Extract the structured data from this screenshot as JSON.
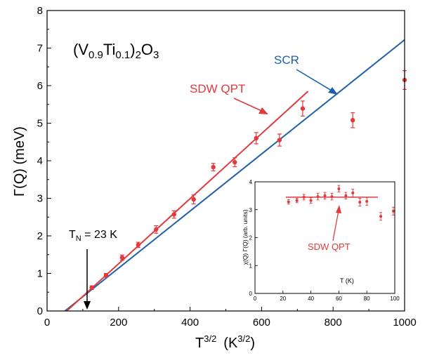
{
  "chart_data": {
    "type": "scatter",
    "title": "(V0.9Ti0.1)2O3",
    "title_parts": {
      "a": "(V",
      "b": "0.9",
      "c": "Ti",
      "d": "0.1",
      "e": ")",
      "f": "2",
      "g": "O",
      "h": "3"
    },
    "xlabel": {
      "base": "T",
      "sup": "3/2",
      "mid": "(K",
      "sup2": "3/2",
      "end": ")"
    },
    "ylabel": "Γ(Q)  (meV)",
    "xlim": [
      0,
      1000
    ],
    "ylim": [
      0,
      8
    ],
    "xticks": [
      "0",
      "200",
      "400",
      "600",
      "800",
      "1000"
    ],
    "yticks": [
      "0",
      "1",
      "2",
      "3",
      "4",
      "5",
      "6",
      "7",
      "8"
    ],
    "points": [
      {
        "x": 125,
        "y": 0.62,
        "err": 0.05
      },
      {
        "x": 165,
        "y": 0.95,
        "err": 0.05
      },
      {
        "x": 210,
        "y": 1.42,
        "err": 0.07
      },
      {
        "x": 255,
        "y": 1.76,
        "err": 0.07
      },
      {
        "x": 305,
        "y": 2.17,
        "err": 0.1
      },
      {
        "x": 355,
        "y": 2.57,
        "err": 0.1
      },
      {
        "x": 410,
        "y": 2.97,
        "err": 0.12
      },
      {
        "x": 465,
        "y": 3.83,
        "err": 0.1
      },
      {
        "x": 525,
        "y": 3.96,
        "err": 0.12
      },
      {
        "x": 585,
        "y": 4.6,
        "err": 0.15
      },
      {
        "x": 650,
        "y": 4.55,
        "err": 0.16
      },
      {
        "x": 715,
        "y": 5.39,
        "err": 0.2
      },
      {
        "x": 855,
        "y": 5.08,
        "err": 0.2
      },
      {
        "x": 1000,
        "y": 6.15,
        "err": 0.25
      }
    ],
    "lines": [
      {
        "name": "SCR",
        "color": "#1f5fad",
        "x": [
          50,
          1000
        ],
        "y": [
          0,
          7.22
        ]
      },
      {
        "name": "SDW QPT",
        "color": "#e03a3e",
        "x": [
          55,
          730
        ],
        "y": [
          0,
          5.85
        ]
      }
    ],
    "annotations": {
      "scr": "SCR",
      "sdw": "SDW QPT",
      "tn_base": "T",
      "tn_sub": "N",
      "tn_rest": " = 23 K"
    },
    "marker_color": "#e03a3e",
    "inset": {
      "xlabel": "T (K)",
      "ylabel": "χ(Q) Γ(Q)   (arb. units)",
      "label": "SDW QPT",
      "xlim": [
        0,
        100
      ],
      "ylim": [
        0,
        4
      ],
      "xticks": [
        "0",
        "20",
        "40",
        "60",
        "80",
        "100"
      ],
      "yticks": [
        "0",
        "1",
        "2",
        "3",
        "4"
      ],
      "points": [
        {
          "x": 24,
          "y": 3.28,
          "err": 0.08
        },
        {
          "x": 30,
          "y": 3.33,
          "err": 0.08
        },
        {
          "x": 35,
          "y": 3.45,
          "err": 0.1
        },
        {
          "x": 40,
          "y": 3.33,
          "err": 0.1
        },
        {
          "x": 45,
          "y": 3.47,
          "err": 0.12
        },
        {
          "x": 50,
          "y": 3.5,
          "err": 0.12
        },
        {
          "x": 55,
          "y": 3.47,
          "err": 0.12
        },
        {
          "x": 60,
          "y": 3.75,
          "err": 0.12
        },
        {
          "x": 65,
          "y": 3.5,
          "err": 0.12
        },
        {
          "x": 70,
          "y": 3.6,
          "err": 0.14
        },
        {
          "x": 75,
          "y": 3.27,
          "err": 0.14
        },
        {
          "x": 80,
          "y": 3.3,
          "err": 0.14
        },
        {
          "x": 90,
          "y": 2.76,
          "err": 0.14
        },
        {
          "x": 99,
          "y": 2.95,
          "err": 0.14
        }
      ],
      "line": {
        "x": [
          22,
          88
        ],
        "y": [
          3.45,
          3.45
        ],
        "color": "#e03a3e"
      }
    }
  }
}
